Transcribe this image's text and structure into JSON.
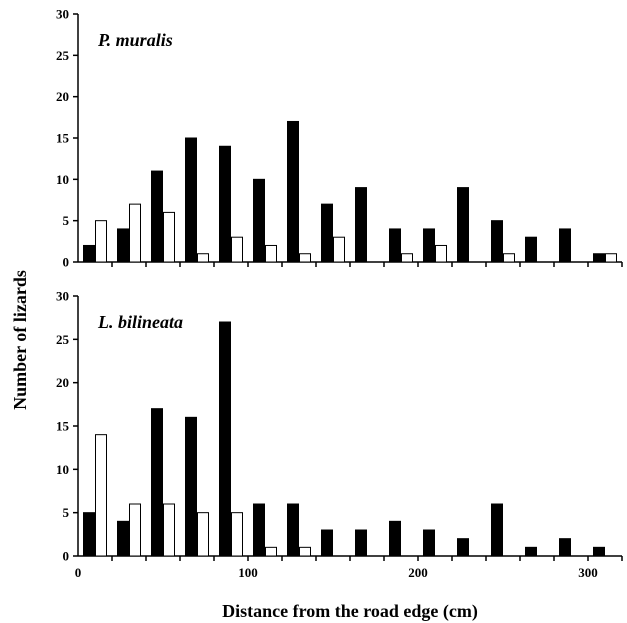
{
  "chart_data": [
    {
      "type": "bar",
      "title": "P. muralis",
      "x_bin_centers": [
        10,
        30,
        50,
        70,
        90,
        110,
        130,
        150,
        170,
        190,
        210,
        230,
        250,
        270,
        290,
        310
      ],
      "series": [
        {
          "fill": "black",
          "values": [
            2,
            4,
            11,
            15,
            14,
            10,
            17,
            7,
            9,
            4,
            4,
            9,
            5,
            3,
            4,
            1
          ]
        },
        {
          "fill": "white",
          "values": [
            5,
            7,
            6,
            1,
            3,
            2,
            1,
            3,
            0,
            1,
            2,
            0,
            1,
            0,
            0,
            1
          ]
        }
      ],
      "ylim": [
        0,
        30
      ],
      "yticks": [
        "0",
        "5",
        "10",
        "15",
        "20",
        "25",
        "30"
      ],
      "xlim": [
        0,
        320
      ]
    },
    {
      "type": "bar",
      "title": "L. bilineata",
      "x_bin_centers": [
        10,
        30,
        50,
        70,
        90,
        110,
        130,
        150,
        170,
        190,
        210,
        230,
        250,
        270,
        290,
        310
      ],
      "series": [
        {
          "fill": "black",
          "values": [
            5,
            4,
            17,
            16,
            27,
            6,
            6,
            3,
            3,
            4,
            3,
            2,
            6,
            1,
            2,
            1
          ]
        },
        {
          "fill": "white",
          "values": [
            14,
            6,
            6,
            5,
            5,
            1,
            1,
            0,
            0,
            0,
            0,
            0,
            0,
            0,
            0,
            0
          ]
        }
      ],
      "ylim": [
        0,
        30
      ],
      "yticks": [
        "0",
        "5",
        "10",
        "15",
        "20",
        "25",
        "30"
      ],
      "xlim": [
        0,
        320
      ],
      "xticks": [
        "0",
        "100",
        "200",
        "300"
      ]
    }
  ],
  "labels": {
    "ylabel": "Number    of    lizards",
    "xlabel": "Distance from the road edge (cm)"
  },
  "colors": {
    "filled": "#000000",
    "open": "#ffffff",
    "stroke": "#000000"
  }
}
